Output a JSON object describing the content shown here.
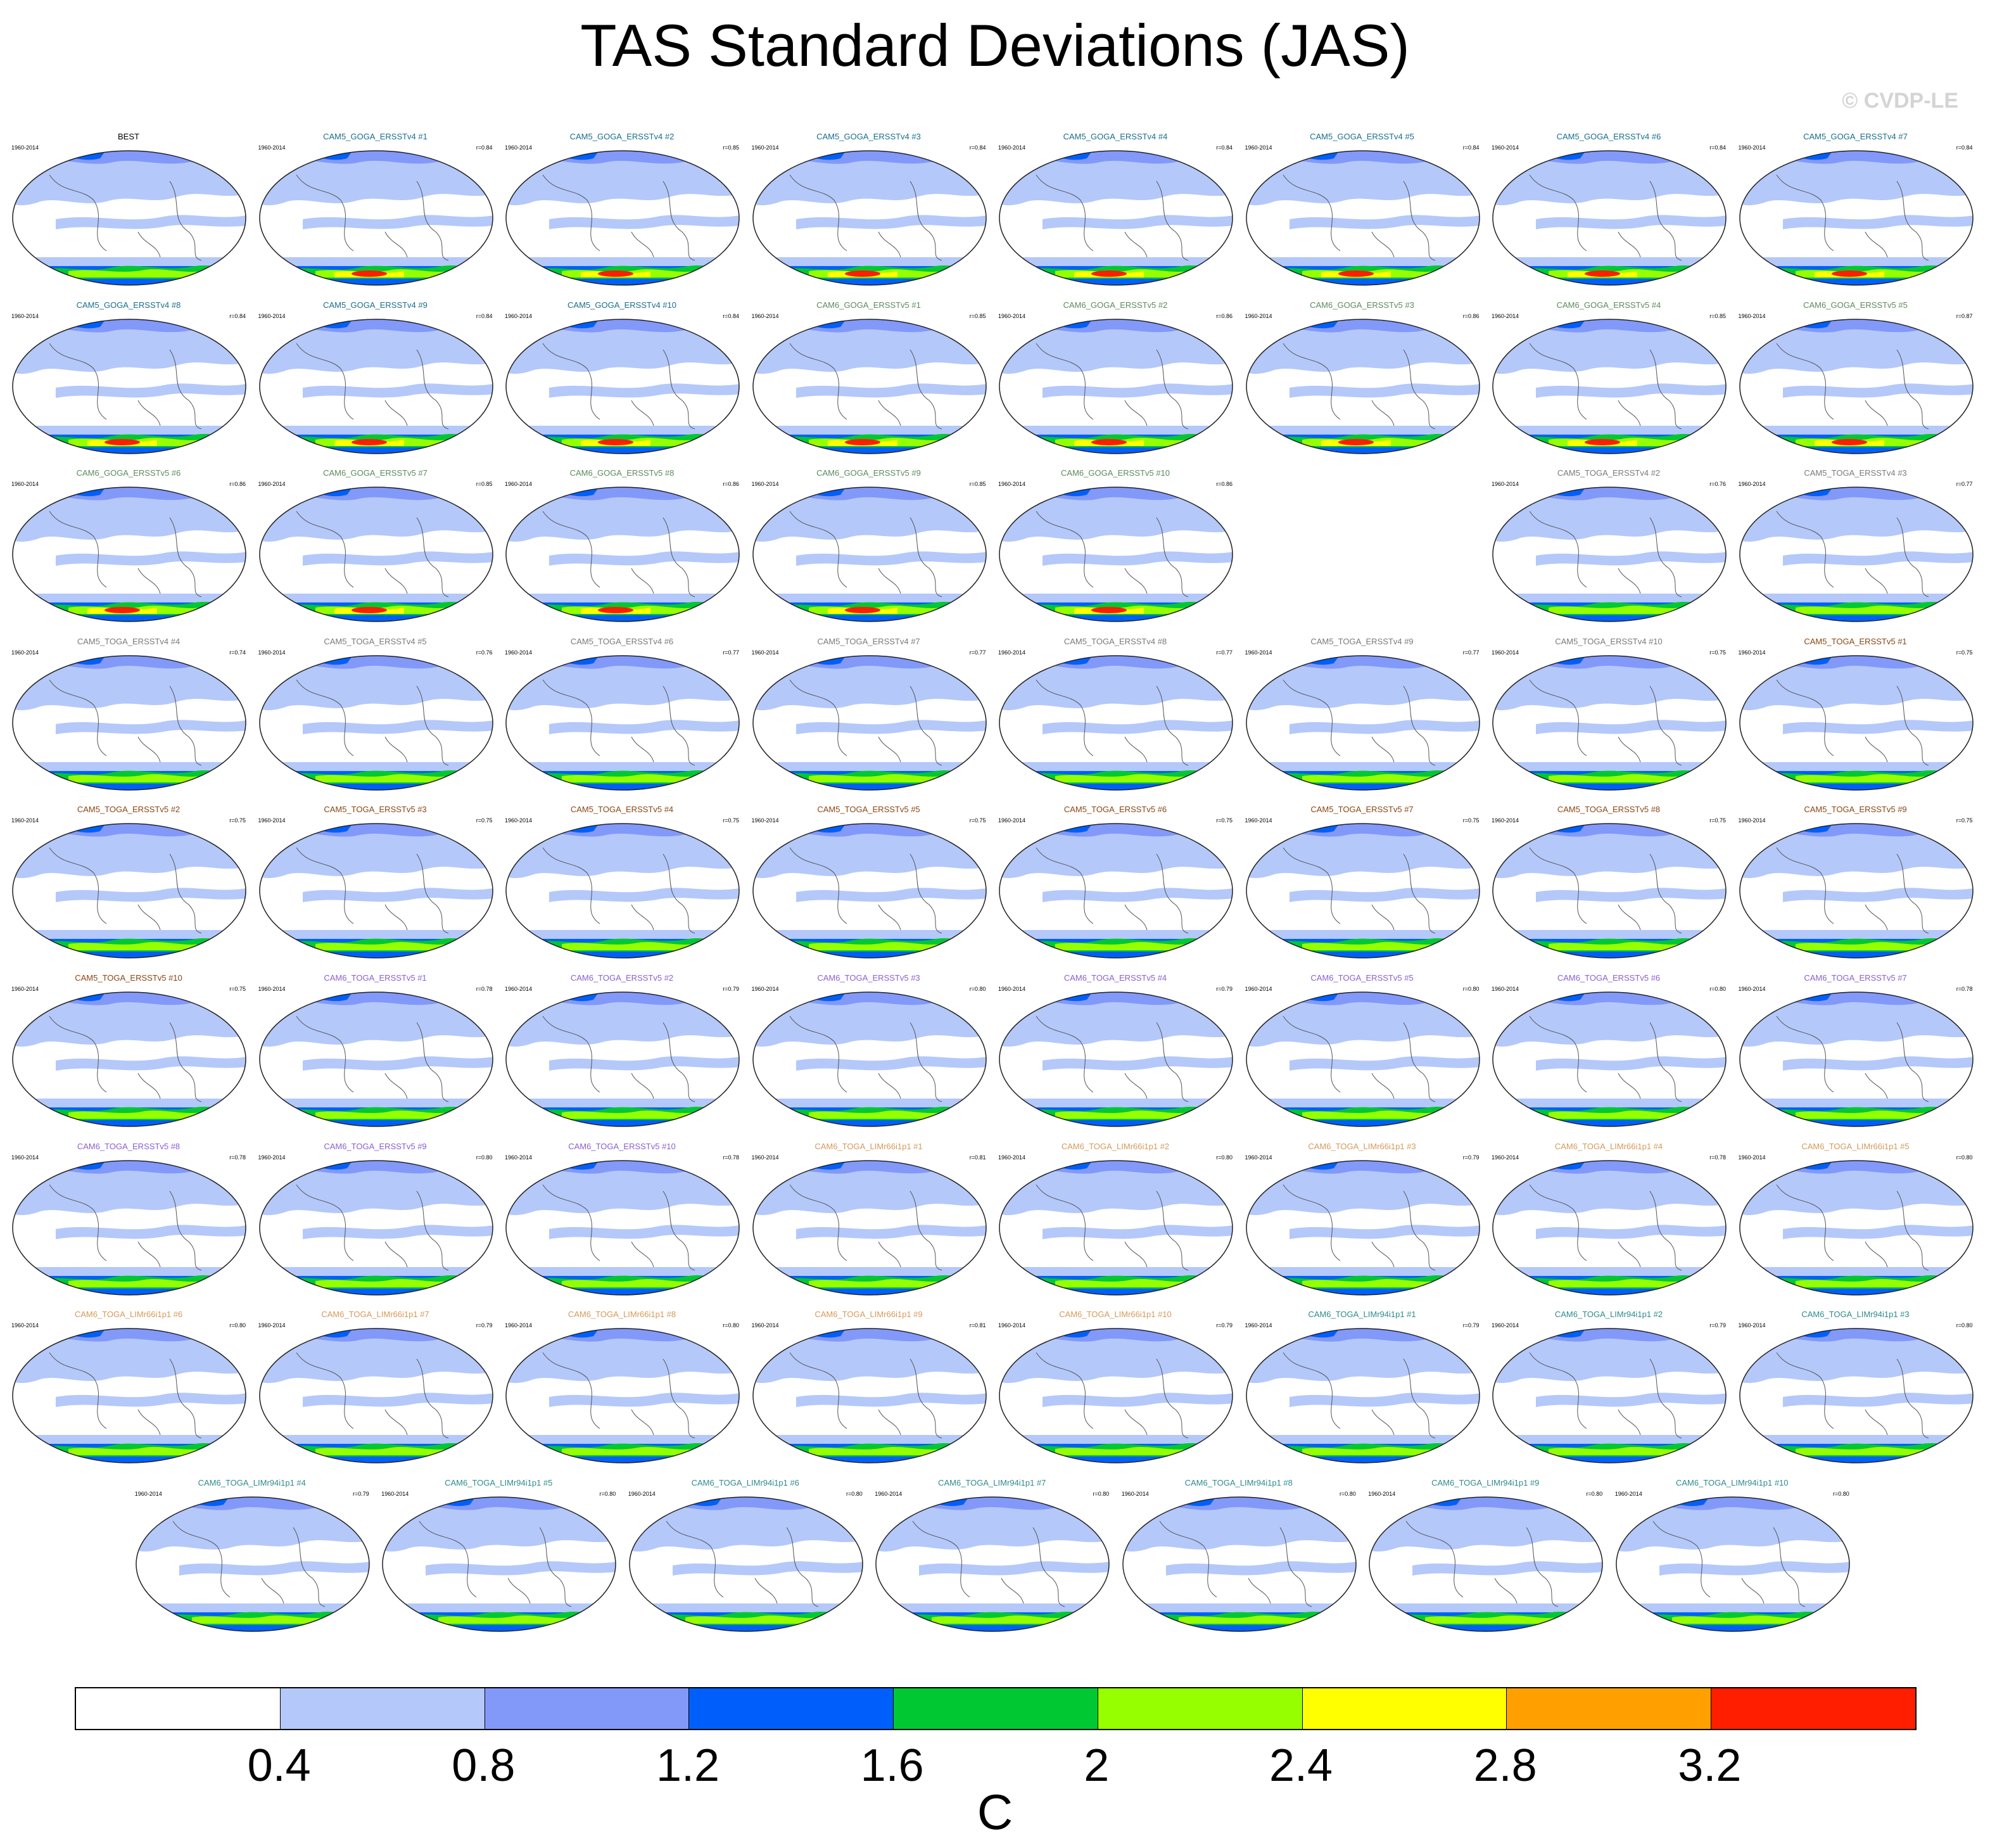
{
  "title": "TAS Standard Deviations (JAS)",
  "watermark": "© CVDP-LE",
  "years": "1960-2014",
  "group_colors": {
    "best": "#000000",
    "cam5_goga": "#1a6e8a",
    "cam6_goga": "#5c8a5c",
    "cam5_toga_v4": "#7a7a7a",
    "cam5_toga_v5": "#8b4513",
    "cam6_toga_v5": "#8b5fd0",
    "cam6_toga_lim66": "#d49a5a",
    "cam6_toga_lim94": "#2e8b8b"
  },
  "panels": [
    {
      "name": "BEST",
      "r": "",
      "group": "best"
    },
    {
      "name": "CAM5_GOGA_ERSSTv4 #1",
      "r": "r=0.84",
      "group": "cam5_goga"
    },
    {
      "name": "CAM5_GOGA_ERSSTv4 #2",
      "r": "r=0.85",
      "group": "cam5_goga"
    },
    {
      "name": "CAM5_GOGA_ERSSTv4 #3",
      "r": "r=0.84",
      "group": "cam5_goga"
    },
    {
      "name": "CAM5_GOGA_ERSSTv4 #4",
      "r": "r=0.84",
      "group": "cam5_goga"
    },
    {
      "name": "CAM5_GOGA_ERSSTv4 #5",
      "r": "r=0.84",
      "group": "cam5_goga"
    },
    {
      "name": "CAM5_GOGA_ERSSTv4 #6",
      "r": "r=0.84",
      "group": "cam5_goga"
    },
    {
      "name": "CAM5_GOGA_ERSSTv4 #7",
      "r": "r=0.84",
      "group": "cam5_goga"
    },
    {
      "name": "CAM5_GOGA_ERSSTv4 #8",
      "r": "r=0.84",
      "group": "cam5_goga"
    },
    {
      "name": "CAM5_GOGA_ERSSTv4 #9",
      "r": "r=0.84",
      "group": "cam5_goga"
    },
    {
      "name": "CAM5_GOGA_ERSSTv4 #10",
      "r": "r=0.84",
      "group": "cam5_goga"
    },
    {
      "name": "CAM6_GOGA_ERSSTv5 #1",
      "r": "r=0.85",
      "group": "cam6_goga"
    },
    {
      "name": "CAM6_GOGA_ERSSTv5 #2",
      "r": "r=0.86",
      "group": "cam6_goga"
    },
    {
      "name": "CAM6_GOGA_ERSSTv5 #3",
      "r": "r=0.86",
      "group": "cam6_goga"
    },
    {
      "name": "CAM6_GOGA_ERSSTv5 #4",
      "r": "r=0.85",
      "group": "cam6_goga"
    },
    {
      "name": "CAM6_GOGA_ERSSTv5 #5",
      "r": "r=0.87",
      "group": "cam6_goga"
    },
    {
      "name": "CAM6_GOGA_ERSSTv5 #6",
      "r": "r=0.86",
      "group": "cam6_goga"
    },
    {
      "name": "CAM6_GOGA_ERSSTv5 #7",
      "r": "r=0.85",
      "group": "cam6_goga"
    },
    {
      "name": "CAM6_GOGA_ERSSTv5 #8",
      "r": "r=0.86",
      "group": "cam6_goga"
    },
    {
      "name": "CAM6_GOGA_ERSSTv5 #9",
      "r": "r=0.85",
      "group": "cam6_goga"
    },
    {
      "name": "CAM6_GOGA_ERSSTv5 #10",
      "r": "r=0.86",
      "group": "cam6_goga"
    },
    {
      "name": "CAM5_TOGA_ERSSTv4 #2",
      "r": "r=0.76",
      "group": "cam5_toga_v4"
    },
    {
      "name": "CAM5_TOGA_ERSSTv4 #3",
      "r": "r=0.77",
      "group": "cam5_toga_v4"
    },
    {
      "name": "CAM5_TOGA_ERSSTv4 #4",
      "r": "r=0.74",
      "group": "cam5_toga_v4"
    },
    {
      "name": "CAM5_TOGA_ERSSTv4 #5",
      "r": "r=0.76",
      "group": "cam5_toga_v4"
    },
    {
      "name": "CAM5_TOGA_ERSSTv4 #6",
      "r": "r=0.77",
      "group": "cam5_toga_v4"
    },
    {
      "name": "CAM5_TOGA_ERSSTv4 #7",
      "r": "r=0.77",
      "group": "cam5_toga_v4"
    },
    {
      "name": "CAM5_TOGA_ERSSTv4 #8",
      "r": "r=0.77",
      "group": "cam5_toga_v4"
    },
    {
      "name": "CAM5_TOGA_ERSSTv4 #9",
      "r": "r=0.77",
      "group": "cam5_toga_v4"
    },
    {
      "name": "CAM5_TOGA_ERSSTv4 #10",
      "r": "r=0.75",
      "group": "cam5_toga_v4"
    },
    {
      "name": "CAM5_TOGA_ERSSTv5 #1",
      "r": "r=0.75",
      "group": "cam5_toga_v5"
    },
    {
      "name": "CAM5_TOGA_ERSSTv5 #2",
      "r": "r=0.75",
      "group": "cam5_toga_v5"
    },
    {
      "name": "CAM5_TOGA_ERSSTv5 #3",
      "r": "r=0.75",
      "group": "cam5_toga_v5"
    },
    {
      "name": "CAM5_TOGA_ERSSTv5 #4",
      "r": "r=0.75",
      "group": "cam5_toga_v5"
    },
    {
      "name": "CAM5_TOGA_ERSSTv5 #5",
      "r": "r=0.75",
      "group": "cam5_toga_v5"
    },
    {
      "name": "CAM5_TOGA_ERSSTv5 #6",
      "r": "r=0.75",
      "group": "cam5_toga_v5"
    },
    {
      "name": "CAM5_TOGA_ERSSTv5 #7",
      "r": "r=0.75",
      "group": "cam5_toga_v5"
    },
    {
      "name": "CAM5_TOGA_ERSSTv5 #8",
      "r": "r=0.75",
      "group": "cam5_toga_v5"
    },
    {
      "name": "CAM5_TOGA_ERSSTv5 #9",
      "r": "r=0.75",
      "group": "cam5_toga_v5"
    },
    {
      "name": "CAM5_TOGA_ERSSTv5 #10",
      "r": "r=0.75",
      "group": "cam5_toga_v5"
    },
    {
      "name": "CAM6_TOGA_ERSSTv5 #1",
      "r": "r=0.78",
      "group": "cam6_toga_v5"
    },
    {
      "name": "CAM6_TOGA_ERSSTv5 #2",
      "r": "r=0.79",
      "group": "cam6_toga_v5"
    },
    {
      "name": "CAM6_TOGA_ERSSTv5 #3",
      "r": "r=0.80",
      "group": "cam6_toga_v5"
    },
    {
      "name": "CAM6_TOGA_ERSSTv5 #4",
      "r": "r=0.79",
      "group": "cam6_toga_v5"
    },
    {
      "name": "CAM6_TOGA_ERSSTv5 #5",
      "r": "r=0.80",
      "group": "cam6_toga_v5"
    },
    {
      "name": "CAM6_TOGA_ERSSTv5 #6",
      "r": "r=0.80",
      "group": "cam6_toga_v5"
    },
    {
      "name": "CAM6_TOGA_ERSSTv5 #7",
      "r": "r=0.78",
      "group": "cam6_toga_v5"
    },
    {
      "name": "CAM6_TOGA_ERSSTv5 #8",
      "r": "r=0.78",
      "group": "cam6_toga_v5"
    },
    {
      "name": "CAM6_TOGA_ERSSTv5 #9",
      "r": "r=0.80",
      "group": "cam6_toga_v5"
    },
    {
      "name": "CAM6_TOGA_ERSSTv5 #10",
      "r": "r=0.78",
      "group": "cam6_toga_v5"
    },
    {
      "name": "CAM6_TOGA_LIMr66i1p1 #1",
      "r": "r=0.81",
      "group": "cam6_toga_lim66"
    },
    {
      "name": "CAM6_TOGA_LIMr66i1p1 #2",
      "r": "r=0.80",
      "group": "cam6_toga_lim66"
    },
    {
      "name": "CAM6_TOGA_LIMr66i1p1 #3",
      "r": "r=0.79",
      "group": "cam6_toga_lim66"
    },
    {
      "name": "CAM6_TOGA_LIMr66i1p1 #4",
      "r": "r=0.78",
      "group": "cam6_toga_lim66"
    },
    {
      "name": "CAM6_TOGA_LIMr66i1p1 #5",
      "r": "r=0.80",
      "group": "cam6_toga_lim66"
    },
    {
      "name": "CAM6_TOGA_LIMr66i1p1 #6",
      "r": "r=0.80",
      "group": "cam6_toga_lim66"
    },
    {
      "name": "CAM6_TOGA_LIMr66i1p1 #7",
      "r": "r=0.79",
      "group": "cam6_toga_lim66"
    },
    {
      "name": "CAM6_TOGA_LIMr66i1p1 #8",
      "r": "r=0.80",
      "group": "cam6_toga_lim66"
    },
    {
      "name": "CAM6_TOGA_LIMr66i1p1 #9",
      "r": "r=0.81",
      "group": "cam6_toga_lim66"
    },
    {
      "name": "CAM6_TOGA_LIMr66i1p1 #10",
      "r": "r=0.79",
      "group": "cam6_toga_lim66"
    },
    {
      "name": "CAM6_TOGA_LIMr94i1p1 #1",
      "r": "r=0.79",
      "group": "cam6_toga_lim94"
    },
    {
      "name": "CAM6_TOGA_LIMr94i1p1 #2",
      "r": "r=0.79",
      "group": "cam6_toga_lim94"
    },
    {
      "name": "CAM6_TOGA_LIMr94i1p1 #3",
      "r": "r=0.80",
      "group": "cam6_toga_lim94"
    },
    {
      "name": "CAM6_TOGA_LIMr94i1p1 #4",
      "r": "r=0.79",
      "group": "cam6_toga_lim94"
    },
    {
      "name": "CAM6_TOGA_LIMr94i1p1 #5",
      "r": "r=0.80",
      "group": "cam6_toga_lim94"
    },
    {
      "name": "CAM6_TOGA_LIMr94i1p1 #6",
      "r": "r=0.80",
      "group": "cam6_toga_lim94"
    },
    {
      "name": "CAM6_TOGA_LIMr94i1p1 #7",
      "r": "r=0.80",
      "group": "cam6_toga_lim94"
    },
    {
      "name": "CAM6_TOGA_LIMr94i1p1 #8",
      "r": "r=0.80",
      "group": "cam6_toga_lim94"
    },
    {
      "name": "CAM6_TOGA_LIMr94i1p1 #9",
      "r": "r=0.80",
      "group": "cam6_toga_lim94"
    },
    {
      "name": "CAM6_TOGA_LIMr94i1p1 #10",
      "r": "r=0.80",
      "group": "cam6_toga_lim94"
    }
  ],
  "colorbar": {
    "colors": [
      "#ffffff",
      "#b4c8fa",
      "#8299fa",
      "#005ffa",
      "#00c832",
      "#96ff00",
      "#ffff00",
      "#ffa000",
      "#ff1e00"
    ],
    "ticks": [
      "0.4",
      "0.8",
      "1.2",
      "1.6",
      "2",
      "2.4",
      "2.8",
      "3.2"
    ],
    "units": "C"
  }
}
